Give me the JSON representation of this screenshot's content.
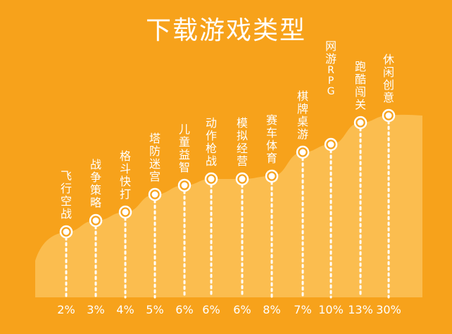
{
  "chart_data": {
    "type": "area",
    "title": "下载游戏类型",
    "categories": [
      "飞行空战",
      "战争策略",
      "格斗快打",
      "塔防迷宫",
      "儿童益智",
      "动作枪战",
      "模拟经营",
      "赛车体育",
      "棋牌桌游",
      "网游RPG",
      "跑酷闯关",
      "休闲创意"
    ],
    "values": [
      2,
      3,
      4,
      5,
      6,
      6,
      6,
      8,
      7,
      10,
      13,
      30
    ],
    "value_labels": [
      "2%",
      "3%",
      "4%",
      "5%",
      "6%",
      "6%",
      "6%",
      "8%",
      "7%",
      "10%",
      "13%",
      "30%"
    ],
    "unit": "%",
    "grid": false,
    "legend": "none",
    "colors": {
      "background": "#F7A21B",
      "area": "#FBBD4F",
      "text": "#FFFFFF",
      "marker": "#FFFFFF"
    }
  }
}
